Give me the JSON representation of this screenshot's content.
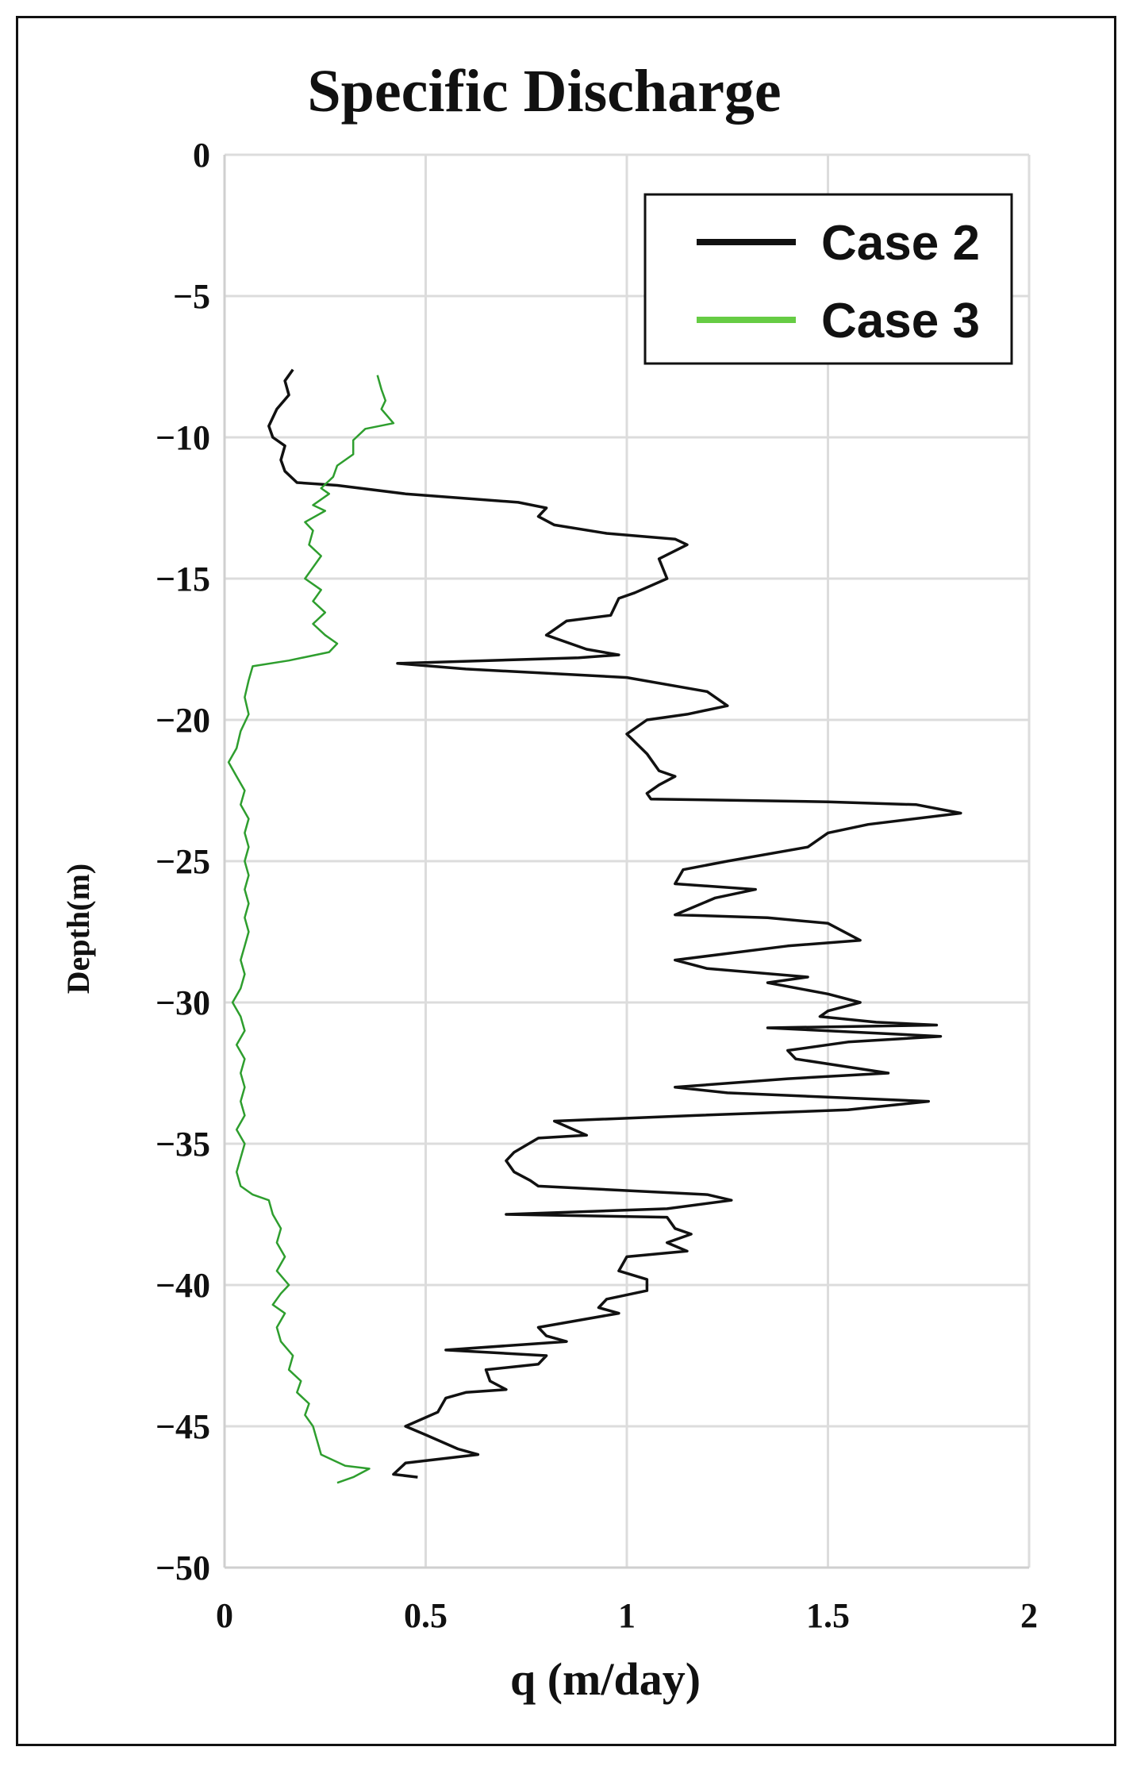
{
  "chart_data": {
    "type": "line",
    "title": "Specific Discharge",
    "xlabel": "q (m/day)",
    "ylabel": "Depth(m)",
    "xlim": [
      0,
      2
    ],
    "ylim": [
      -50,
      0
    ],
    "xticks": [
      "0",
      "0.5",
      "1",
      "1.5",
      "2"
    ],
    "yticks": [
      "0",
      "−5",
      "−10",
      "−15",
      "−20",
      "−25",
      "−30",
      "−35",
      "−40",
      "−45",
      "−50"
    ],
    "grid": true,
    "legend_position": "top-right",
    "series": [
      {
        "name": "Case 2",
        "color": "#111111",
        "points": [
          [
            0.17,
            -7.6
          ],
          [
            0.15,
            -8.0
          ],
          [
            0.16,
            -8.5
          ],
          [
            0.13,
            -9.0
          ],
          [
            0.11,
            -9.6
          ],
          [
            0.12,
            -10.0
          ],
          [
            0.15,
            -10.3
          ],
          [
            0.14,
            -10.8
          ],
          [
            0.15,
            -11.2
          ],
          [
            0.18,
            -11.6
          ],
          [
            0.28,
            -11.7
          ],
          [
            0.45,
            -12.0
          ],
          [
            0.73,
            -12.3
          ],
          [
            0.8,
            -12.5
          ],
          [
            0.78,
            -12.8
          ],
          [
            0.82,
            -13.1
          ],
          [
            0.95,
            -13.4
          ],
          [
            1.12,
            -13.6
          ],
          [
            1.15,
            -13.8
          ],
          [
            1.08,
            -14.3
          ],
          [
            1.1,
            -15.0
          ],
          [
            1.02,
            -15.5
          ],
          [
            0.98,
            -15.7
          ],
          [
            0.96,
            -16.3
          ],
          [
            0.85,
            -16.5
          ],
          [
            0.8,
            -17.0
          ],
          [
            0.9,
            -17.5
          ],
          [
            0.98,
            -17.7
          ],
          [
            0.88,
            -17.8
          ],
          [
            0.43,
            -18.0
          ],
          [
            0.6,
            -18.2
          ],
          [
            1.0,
            -18.5
          ],
          [
            1.2,
            -19.0
          ],
          [
            1.25,
            -19.5
          ],
          [
            1.15,
            -19.8
          ],
          [
            1.05,
            -20.0
          ],
          [
            1.0,
            -20.5
          ],
          [
            1.05,
            -21.2
          ],
          [
            1.08,
            -21.8
          ],
          [
            1.12,
            -22.0
          ],
          [
            1.08,
            -22.3
          ],
          [
            1.05,
            -22.6
          ],
          [
            1.06,
            -22.8
          ],
          [
            1.5,
            -22.9
          ],
          [
            1.72,
            -23.0
          ],
          [
            1.83,
            -23.3
          ],
          [
            1.6,
            -23.7
          ],
          [
            1.5,
            -24.0
          ],
          [
            1.45,
            -24.5
          ],
          [
            1.25,
            -25.0
          ],
          [
            1.14,
            -25.3
          ],
          [
            1.12,
            -25.8
          ],
          [
            1.32,
            -26.0
          ],
          [
            1.22,
            -26.3
          ],
          [
            1.12,
            -26.9
          ],
          [
            1.35,
            -27.0
          ],
          [
            1.5,
            -27.2
          ],
          [
            1.58,
            -27.8
          ],
          [
            1.4,
            -28.0
          ],
          [
            1.12,
            -28.5
          ],
          [
            1.2,
            -28.8
          ],
          [
            1.45,
            -29.1
          ],
          [
            1.35,
            -29.3
          ],
          [
            1.5,
            -29.7
          ],
          [
            1.58,
            -30.0
          ],
          [
            1.5,
            -30.3
          ],
          [
            1.48,
            -30.5
          ],
          [
            1.62,
            -30.7
          ],
          [
            1.77,
            -30.8
          ],
          [
            1.35,
            -30.9
          ],
          [
            1.78,
            -31.2
          ],
          [
            1.55,
            -31.4
          ],
          [
            1.4,
            -31.7
          ],
          [
            1.42,
            -32.0
          ],
          [
            1.65,
            -32.5
          ],
          [
            1.4,
            -32.7
          ],
          [
            1.12,
            -33.0
          ],
          [
            1.25,
            -33.2
          ],
          [
            1.75,
            -33.5
          ],
          [
            1.55,
            -33.8
          ],
          [
            1.17,
            -34.0
          ],
          [
            0.82,
            -34.2
          ],
          [
            0.9,
            -34.7
          ],
          [
            0.78,
            -34.8
          ],
          [
            0.72,
            -35.3
          ],
          [
            0.7,
            -35.6
          ],
          [
            0.72,
            -36.0
          ],
          [
            0.76,
            -36.3
          ],
          [
            0.78,
            -36.5
          ],
          [
            1.2,
            -36.8
          ],
          [
            1.26,
            -37.0
          ],
          [
            1.1,
            -37.3
          ],
          [
            0.7,
            -37.5
          ],
          [
            1.1,
            -37.6
          ],
          [
            1.12,
            -38.0
          ],
          [
            1.16,
            -38.2
          ],
          [
            1.1,
            -38.5
          ],
          [
            1.15,
            -38.8
          ],
          [
            1.0,
            -39.0
          ],
          [
            0.98,
            -39.5
          ],
          [
            1.05,
            -39.8
          ],
          [
            1.05,
            -40.2
          ],
          [
            0.95,
            -40.5
          ],
          [
            0.93,
            -40.8
          ],
          [
            0.98,
            -41.0
          ],
          [
            0.78,
            -41.5
          ],
          [
            0.8,
            -41.8
          ],
          [
            0.85,
            -42.0
          ],
          [
            0.55,
            -42.3
          ],
          [
            0.8,
            -42.5
          ],
          [
            0.78,
            -42.8
          ],
          [
            0.65,
            -43.0
          ],
          [
            0.66,
            -43.4
          ],
          [
            0.7,
            -43.7
          ],
          [
            0.6,
            -43.8
          ],
          [
            0.55,
            -44.0
          ],
          [
            0.53,
            -44.5
          ],
          [
            0.45,
            -45.0
          ],
          [
            0.5,
            -45.3
          ],
          [
            0.58,
            -45.8
          ],
          [
            0.63,
            -46.0
          ],
          [
            0.45,
            -46.3
          ],
          [
            0.42,
            -46.7
          ],
          [
            0.48,
            -46.8
          ]
        ]
      },
      {
        "name": "Case 3",
        "color": "#2e9e2e",
        "points": [
          [
            0.38,
            -7.8
          ],
          [
            0.39,
            -8.3
          ],
          [
            0.4,
            -8.7
          ],
          [
            0.39,
            -9.0
          ],
          [
            0.42,
            -9.5
          ],
          [
            0.35,
            -9.7
          ],
          [
            0.32,
            -10.1
          ],
          [
            0.32,
            -10.6
          ],
          [
            0.28,
            -11.0
          ],
          [
            0.27,
            -11.4
          ],
          [
            0.24,
            -11.8
          ],
          [
            0.26,
            -12.0
          ],
          [
            0.22,
            -12.4
          ],
          [
            0.25,
            -12.6
          ],
          [
            0.2,
            -13.0
          ],
          [
            0.22,
            -13.3
          ],
          [
            0.21,
            -13.8
          ],
          [
            0.24,
            -14.2
          ],
          [
            0.22,
            -14.6
          ],
          [
            0.2,
            -15.0
          ],
          [
            0.24,
            -15.4
          ],
          [
            0.22,
            -15.8
          ],
          [
            0.25,
            -16.2
          ],
          [
            0.22,
            -16.6
          ],
          [
            0.25,
            -17.0
          ],
          [
            0.28,
            -17.3
          ],
          [
            0.26,
            -17.6
          ],
          [
            0.16,
            -17.9
          ],
          [
            0.07,
            -18.1
          ],
          [
            0.06,
            -18.6
          ],
          [
            0.05,
            -19.2
          ],
          [
            0.06,
            -19.8
          ],
          [
            0.04,
            -20.4
          ],
          [
            0.03,
            -21.0
          ],
          [
            0.01,
            -21.5
          ],
          [
            0.03,
            -22.0
          ],
          [
            0.05,
            -22.5
          ],
          [
            0.04,
            -23.0
          ],
          [
            0.06,
            -23.5
          ],
          [
            0.05,
            -24.0
          ],
          [
            0.06,
            -24.5
          ],
          [
            0.05,
            -25.0
          ],
          [
            0.06,
            -25.5
          ],
          [
            0.05,
            -26.0
          ],
          [
            0.06,
            -26.5
          ],
          [
            0.05,
            -27.0
          ],
          [
            0.06,
            -27.5
          ],
          [
            0.05,
            -28.0
          ],
          [
            0.04,
            -28.5
          ],
          [
            0.05,
            -29.0
          ],
          [
            0.04,
            -29.5
          ],
          [
            0.02,
            -30.0
          ],
          [
            0.04,
            -30.5
          ],
          [
            0.05,
            -31.0
          ],
          [
            0.03,
            -31.5
          ],
          [
            0.05,
            -32.0
          ],
          [
            0.04,
            -32.5
          ],
          [
            0.05,
            -33.0
          ],
          [
            0.04,
            -33.5
          ],
          [
            0.05,
            -34.0
          ],
          [
            0.03,
            -34.5
          ],
          [
            0.05,
            -35.0
          ],
          [
            0.04,
            -35.5
          ],
          [
            0.03,
            -36.0
          ],
          [
            0.04,
            -36.5
          ],
          [
            0.07,
            -36.8
          ],
          [
            0.11,
            -37.0
          ],
          [
            0.12,
            -37.5
          ],
          [
            0.14,
            -38.0
          ],
          [
            0.13,
            -38.5
          ],
          [
            0.15,
            -39.0
          ],
          [
            0.13,
            -39.5
          ],
          [
            0.16,
            -40.0
          ],
          [
            0.14,
            -40.3
          ],
          [
            0.12,
            -40.7
          ],
          [
            0.15,
            -41.0
          ],
          [
            0.13,
            -41.5
          ],
          [
            0.14,
            -42.0
          ],
          [
            0.17,
            -42.5
          ],
          [
            0.16,
            -43.0
          ],
          [
            0.19,
            -43.4
          ],
          [
            0.18,
            -43.8
          ],
          [
            0.21,
            -44.2
          ],
          [
            0.2,
            -44.6
          ],
          [
            0.22,
            -45.0
          ],
          [
            0.23,
            -45.5
          ],
          [
            0.24,
            -46.0
          ],
          [
            0.3,
            -46.4
          ],
          [
            0.36,
            -46.5
          ],
          [
            0.32,
            -46.8
          ],
          [
            0.28,
            -47.0
          ]
        ]
      }
    ]
  }
}
